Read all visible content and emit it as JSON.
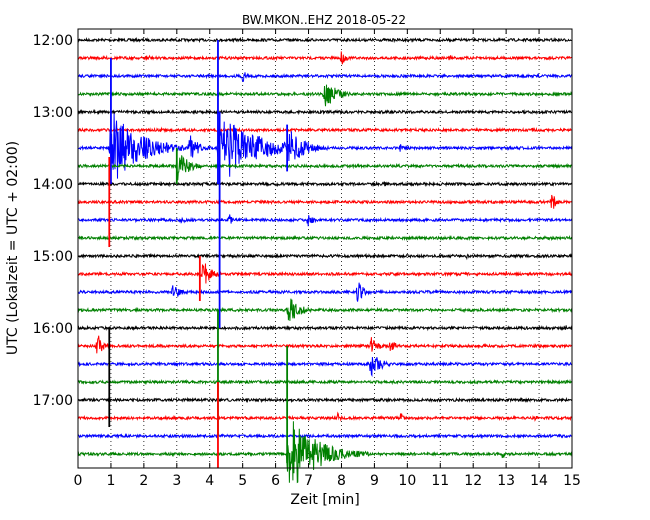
{
  "chart_data": {
    "type": "line",
    "title": "BW.MKON..EHZ 2018-05-22",
    "xlabel": "Zeit  [min]",
    "ylabel": "UTC (Lokalzeit = UTC + 02:00)",
    "xlim": [
      0,
      15
    ],
    "x_ticks": [
      "0",
      "1",
      "2",
      "3",
      "4",
      "5",
      "6",
      "7",
      "8",
      "9",
      "10",
      "11",
      "12",
      "13",
      "14",
      "15"
    ],
    "y_ticks": [
      {
        "label": "12:00",
        "row": 0
      },
      {
        "label": "13:00",
        "row": 4
      },
      {
        "label": "14:00",
        "row": 8
      },
      {
        "label": "15:00",
        "row": 12
      },
      {
        "label": "16:00",
        "row": 16
      },
      {
        "label": "17:00",
        "row": 20
      }
    ],
    "grid": "vertical-dotted",
    "row_interval_min": 15,
    "rows": 24,
    "trace_colors": [
      "#000000",
      "#ff0000",
      "#0000ff",
      "#008000"
    ],
    "events": [
      {
        "row": 1,
        "t": 2.1,
        "amp": 6,
        "dur": 0.3
      },
      {
        "row": 1,
        "t": 8.0,
        "amp": 8,
        "dur": 0.4
      },
      {
        "row": 1,
        "t": 11.3,
        "amp": 4,
        "dur": 0.2
      },
      {
        "row": 2,
        "t": 5.0,
        "amp": 7,
        "dur": 0.4
      },
      {
        "row": 3,
        "t": 7.5,
        "amp": 16,
        "dur": 1.0
      },
      {
        "row": 5,
        "t": 2.5,
        "amp": 3,
        "dur": 0.3
      },
      {
        "row": 5,
        "t": 13.8,
        "amp": 5,
        "dur": 0.3
      },
      {
        "row": 6,
        "t": 1.0,
        "amp": 40,
        "dur": 2.5
      },
      {
        "row": 6,
        "t": 3.4,
        "amp": 14,
        "dur": 0.8
      },
      {
        "row": 6,
        "t": 4.3,
        "amp": 40,
        "dur": 3.0
      },
      {
        "row": 6,
        "t": 6.4,
        "amp": 20,
        "dur": 1.5
      },
      {
        "row": 6,
        "t": 9.8,
        "amp": 5,
        "dur": 0.3
      },
      {
        "row": 7,
        "t": 3.0,
        "amp": 18,
        "dur": 1.0
      },
      {
        "row": 8,
        "t": 6.0,
        "amp": 4,
        "dur": 0.2
      },
      {
        "row": 8,
        "t": 9.3,
        "amp": 3,
        "dur": 0.2
      },
      {
        "row": 9,
        "t": 14.4,
        "amp": 10,
        "dur": 0.4
      },
      {
        "row": 10,
        "t": 3.1,
        "amp": 6,
        "dur": 0.4
      },
      {
        "row": 10,
        "t": 4.6,
        "amp": 6,
        "dur": 0.3
      },
      {
        "row": 10,
        "t": 7.0,
        "amp": 8,
        "dur": 0.4
      },
      {
        "row": 11,
        "t": 12.4,
        "amp": 4,
        "dur": 0.2
      },
      {
        "row": 12,
        "t": 11.8,
        "amp": 3,
        "dur": 0.2
      },
      {
        "row": 13,
        "t": 3.8,
        "amp": 14,
        "dur": 0.8
      },
      {
        "row": 13,
        "t": 13.0,
        "amp": 3,
        "dur": 0.2
      },
      {
        "row": 14,
        "t": 2.9,
        "amp": 10,
        "dur": 0.6
      },
      {
        "row": 14,
        "t": 8.5,
        "amp": 12,
        "dur": 0.6
      },
      {
        "row": 15,
        "t": 6.4,
        "amp": 14,
        "dur": 1.0
      },
      {
        "row": 16,
        "t": 14.8,
        "amp": 4,
        "dur": 0.2
      },
      {
        "row": 17,
        "t": 0.6,
        "amp": 12,
        "dur": 0.6
      },
      {
        "row": 17,
        "t": 8.9,
        "amp": 10,
        "dur": 0.6
      },
      {
        "row": 17,
        "t": 9.5,
        "amp": 8,
        "dur": 0.5
      },
      {
        "row": 18,
        "t": 8.9,
        "amp": 16,
        "dur": 0.8
      },
      {
        "row": 20,
        "t": 13.5,
        "amp": 3,
        "dur": 0.2
      },
      {
        "row": 21,
        "t": 7.9,
        "amp": 6,
        "dur": 0.3
      },
      {
        "row": 21,
        "t": 9.8,
        "amp": 6,
        "dur": 0.3
      },
      {
        "row": 21,
        "t": 13.9,
        "amp": 4,
        "dur": 0.2
      },
      {
        "row": 23,
        "t": 6.4,
        "amp": 40,
        "dur": 2.5
      },
      {
        "row": 23,
        "t": 12.9,
        "amp": 5,
        "dur": 0.3
      }
    ],
    "spikes": [
      {
        "row": 6,
        "t": 1.0,
        "up": 5,
        "down": 2
      },
      {
        "row": 6,
        "t": 4.25,
        "up": 6,
        "down": 2
      },
      {
        "row": 6,
        "t": 6.35,
        "up": 1.3,
        "down": 1.3
      },
      {
        "row": 7,
        "t": 3.0,
        "up": 1,
        "down": 1
      },
      {
        "row": 9,
        "t": 0.95,
        "up": 2.5,
        "down": 2.5
      },
      {
        "row": 10,
        "t": 4.3,
        "up": 6,
        "down": 6
      },
      {
        "row": 13,
        "t": 3.7,
        "up": 1,
        "down": 1.5
      },
      {
        "row": 19,
        "t": 4.25,
        "up": 4,
        "down": 3
      },
      {
        "row": 20,
        "t": 0.95,
        "up": 4,
        "down": 1.5
      },
      {
        "row": 21,
        "t": 4.25,
        "up": 2,
        "down": 4
      },
      {
        "row": 23,
        "t": 6.35,
        "up": 6,
        "down": 0.5
      }
    ]
  }
}
